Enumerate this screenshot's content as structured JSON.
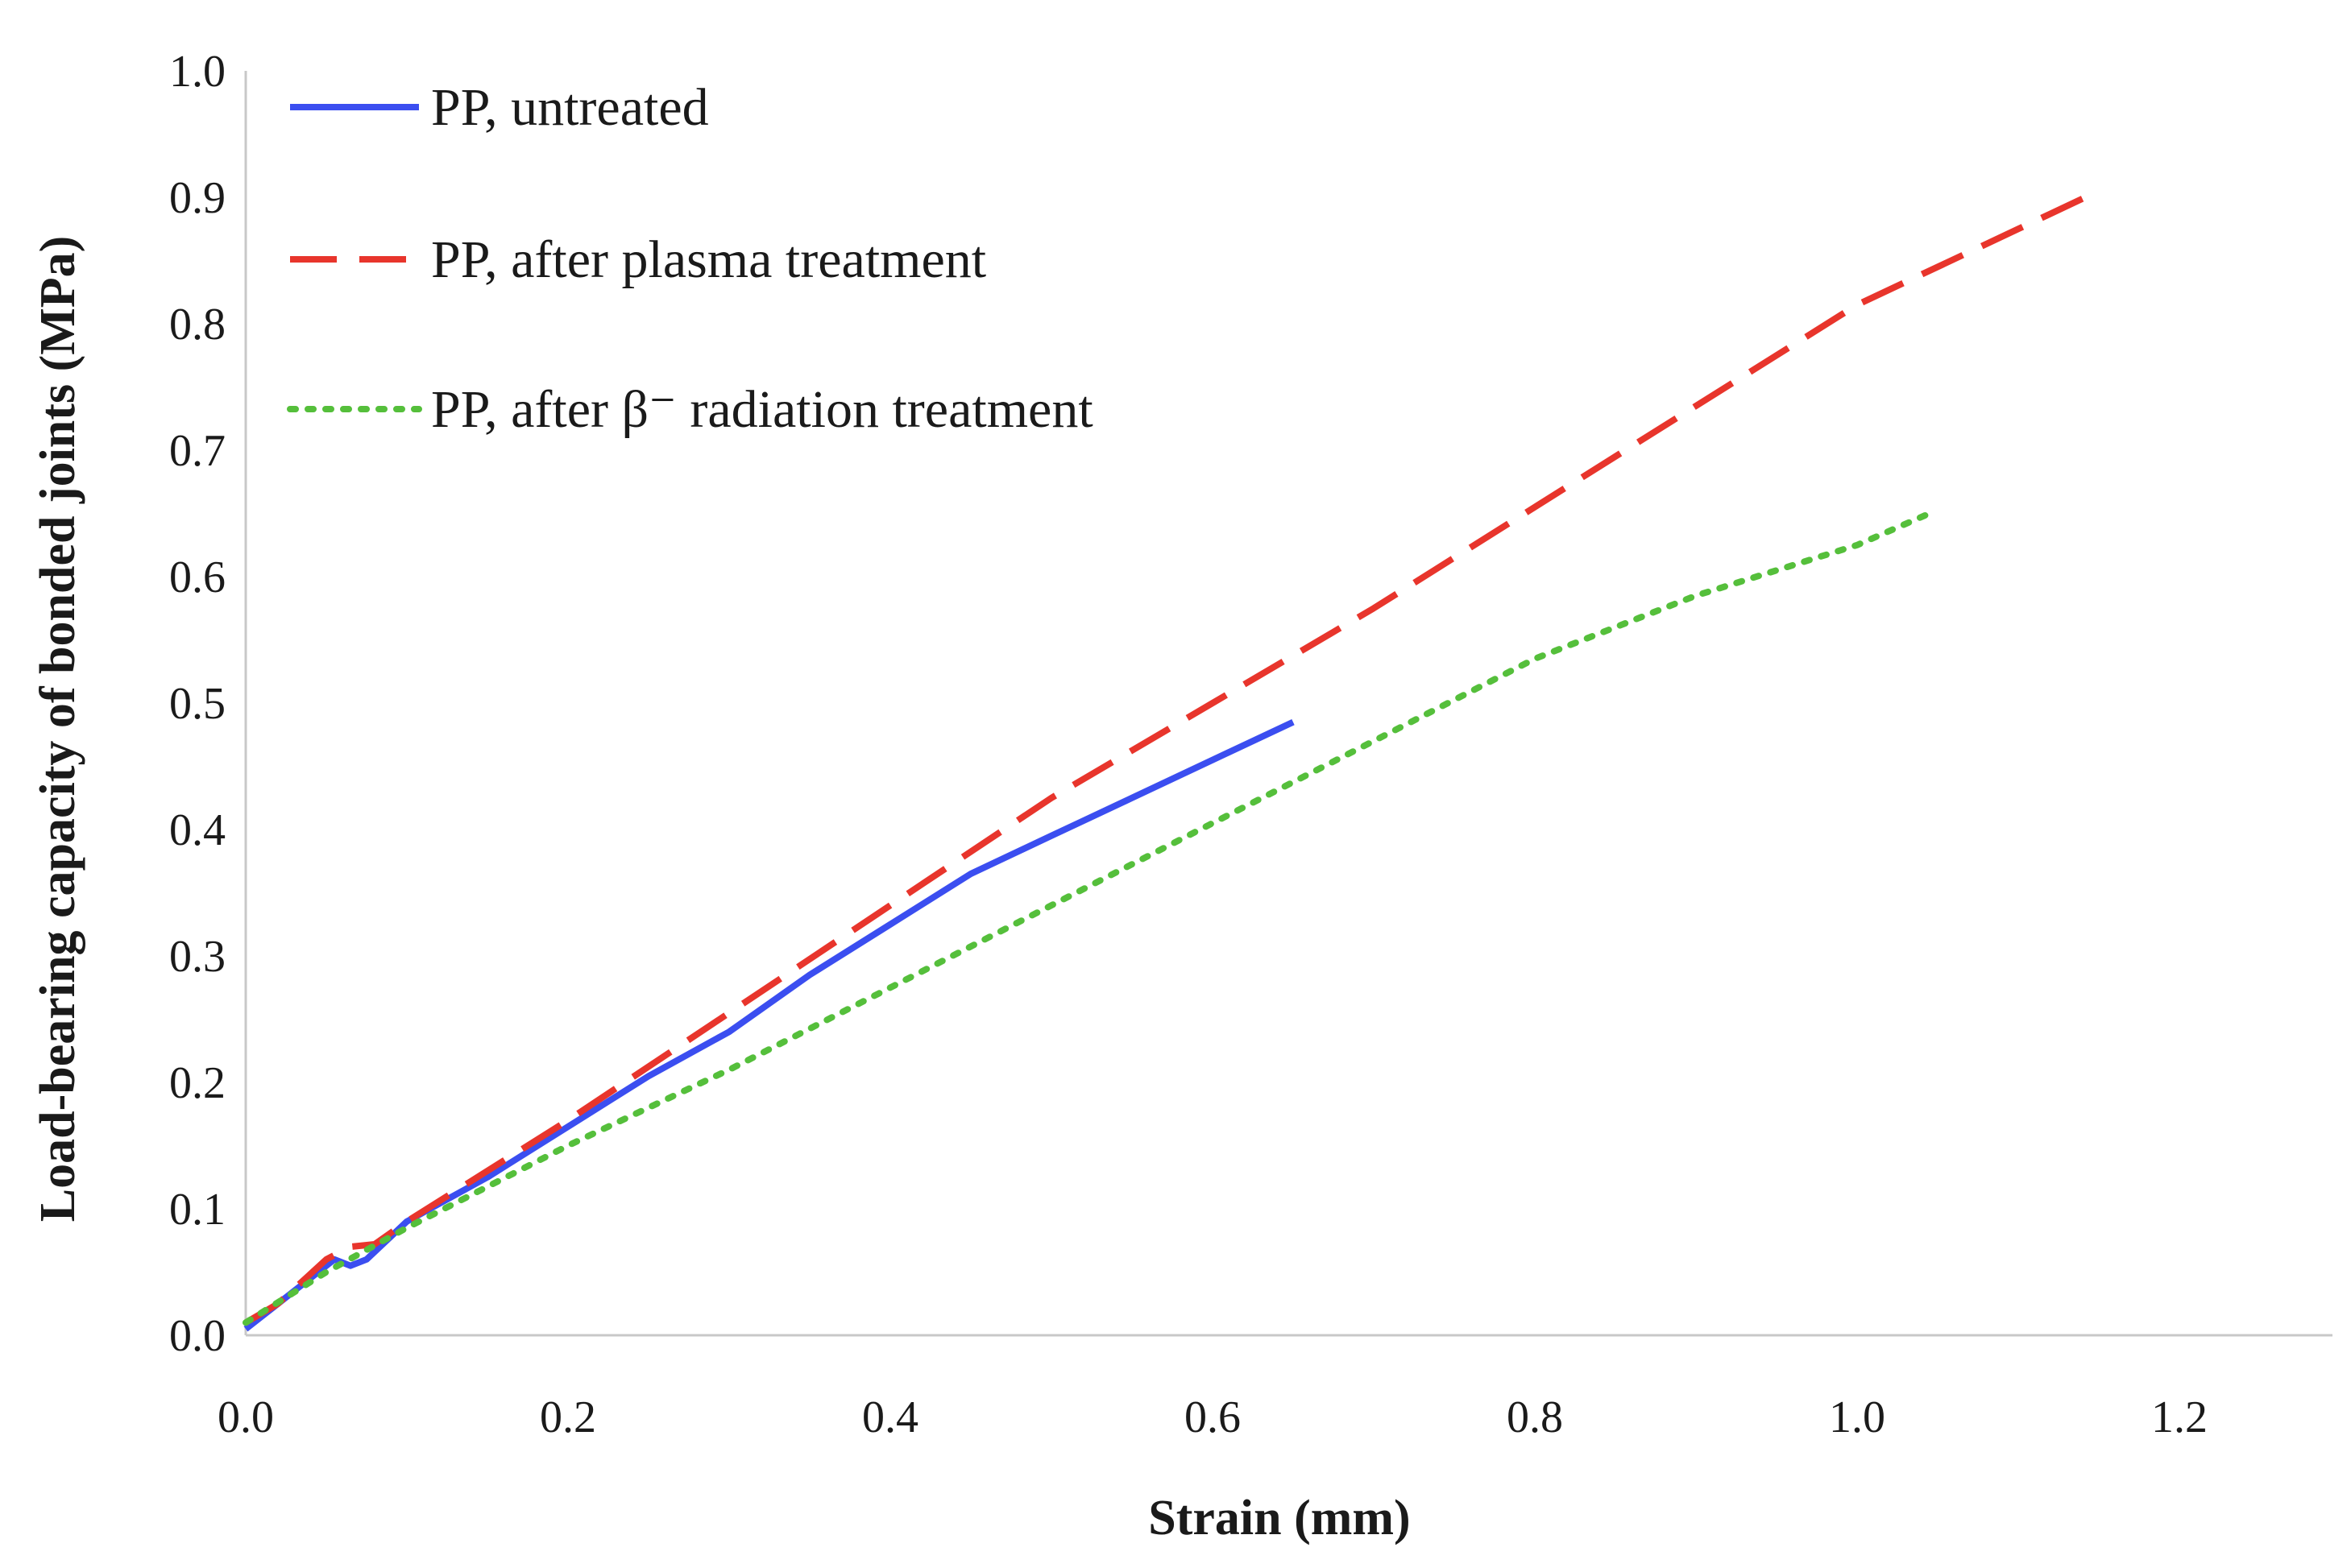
{
  "chart_data": {
    "type": "line",
    "title": "",
    "xlabel": "Strain (mm)",
    "ylabel": "Load-bearing capacity of bonded joints (MPa)",
    "xlim": [
      0,
      1.3
    ],
    "ylim": [
      0,
      1.0
    ],
    "xticks": [
      "0.0",
      "0.2",
      "0.4",
      "0.6",
      "0.8",
      "1.0",
      "1.2"
    ],
    "xtick_values": [
      0,
      0.2,
      0.4,
      0.6,
      0.8,
      1.0,
      1.2
    ],
    "yticks": [
      "0.0",
      "0.1",
      "0.2",
      "0.3",
      "0.4",
      "0.5",
      "0.6",
      "0.7",
      "0.8",
      "0.9",
      "1.0"
    ],
    "ytick_values": [
      0,
      0.1,
      0.2,
      0.3,
      0.4,
      0.5,
      0.6,
      0.7,
      0.8,
      0.9,
      1.0
    ],
    "grid": false,
    "legend_position": "top-left",
    "series": [
      {
        "name": "PP, untreated",
        "color": "#3b4ef0",
        "style": "solid",
        "x": [
          0.0,
          0.02,
          0.04,
          0.055,
          0.065,
          0.075,
          0.1,
          0.15,
          0.2,
          0.25,
          0.3,
          0.35,
          0.4,
          0.45,
          0.5,
          0.55,
          0.6,
          0.65
        ],
        "y": [
          0.005,
          0.025,
          0.045,
          0.06,
          0.055,
          0.06,
          0.09,
          0.125,
          0.165,
          0.205,
          0.24,
          0.285,
          0.325,
          0.365,
          0.395,
          0.425,
          0.455,
          0.485
        ]
      },
      {
        "name": "PP, after plasma treatment",
        "color": "#e8352c",
        "style": "dashed",
        "x": [
          0.0,
          0.02,
          0.05,
          0.065,
          0.08,
          0.1,
          0.15,
          0.2,
          0.3,
          0.4,
          0.5,
          0.6,
          0.7,
          0.8,
          0.9,
          1.0,
          1.1,
          1.15
        ],
        "y": [
          0.01,
          0.025,
          0.06,
          0.07,
          0.072,
          0.09,
          0.13,
          0.17,
          0.255,
          0.34,
          0.425,
          0.5,
          0.575,
          0.655,
          0.735,
          0.815,
          0.875,
          0.905
        ]
      },
      {
        "name": "PP, after β⁻ radiation treatment",
        "color": "#55bf3b",
        "style": "dotted",
        "x": [
          0.0,
          0.05,
          0.1,
          0.2,
          0.3,
          0.4,
          0.5,
          0.6,
          0.7,
          0.8,
          0.9,
          1.0,
          1.045
        ],
        "y": [
          0.01,
          0.05,
          0.085,
          0.15,
          0.21,
          0.275,
          0.34,
          0.405,
          0.47,
          0.535,
          0.585,
          0.625,
          0.65
        ]
      }
    ]
  }
}
